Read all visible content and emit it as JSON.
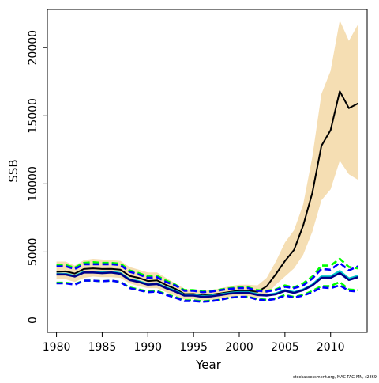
{
  "chart_data": {
    "type": "line",
    "xlabel": "Year",
    "ylabel": "SSB",
    "xlim": [
      1979,
      2014
    ],
    "ylim": [
      -900,
      22800
    ],
    "x_ticks": [
      1980,
      1985,
      1990,
      1995,
      2000,
      2005,
      2010
    ],
    "y_ticks": [
      0,
      5000,
      10000,
      15000,
      20000
    ],
    "x_tick_labels": [
      "1980",
      "1985",
      "1990",
      "1995",
      "2000",
      "2005",
      "2010"
    ],
    "y_tick_labels": [
      "0",
      "5000",
      "10000",
      "15000",
      "20000"
    ],
    "footer": "stockassessment.org, MAC-TAG-MN, r2869",
    "grid": false,
    "legend": "none",
    "x": [
      1980,
      1981,
      1982,
      1983,
      1984,
      1985,
      1986,
      1987,
      1988,
      1989,
      1990,
      1991,
      1992,
      1993,
      1994,
      1995,
      1996,
      1997,
      1998,
      1999,
      2000,
      2001,
      2002,
      2003,
      2004,
      2005,
      2006,
      2007,
      2008,
      2009,
      2010,
      2011,
      2012,
      2013
    ],
    "band": {
      "color": "#f5deb3",
      "lower": [
        3000,
        3000,
        2800,
        3100,
        3200,
        3150,
        3150,
        3100,
        2700,
        2500,
        2350,
        2350,
        2050,
        1800,
        1500,
        1550,
        1450,
        1500,
        1600,
        1700,
        1800,
        1750,
        1650,
        1900,
        2600,
        3200,
        3800,
        4800,
        6500,
        8800,
        9600,
        11700,
        10700,
        10300
      ],
      "upper": [
        4300,
        4300,
        4000,
        4400,
        4500,
        4450,
        4400,
        4350,
        3900,
        3700,
        3500,
        3500,
        3100,
        2700,
        2300,
        2200,
        2150,
        2200,
        2350,
        2500,
        2600,
        2600,
        2550,
        3100,
        4300,
        5700,
        6600,
        8500,
        12000,
        16600,
        18300,
        22000,
        20500,
        21700
      ]
    },
    "series": [
      {
        "color": "#000000",
        "dash": "none",
        "values": [
          3550,
          3580,
          3420,
          3750,
          3800,
          3750,
          3760,
          3700,
          3250,
          3100,
          2870,
          2920,
          2580,
          2300,
          1910,
          1920,
          1810,
          1870,
          1970,
          2070,
          2170,
          2160,
          2080,
          2480,
          3370,
          4340,
          5150,
          6950,
          9350,
          12800,
          13950,
          16800,
          15550,
          15900
        ]
      },
      {
        "color": "#00c8c8",
        "dash": "none",
        "values": [
          3400,
          3400,
          3250,
          3550,
          3550,
          3500,
          3550,
          3450,
          3000,
          2850,
          2650,
          2700,
          2400,
          2150,
          1850,
          1850,
          1750,
          1800,
          1900,
          2000,
          2050,
          2050,
          1900,
          1850,
          1950,
          2200,
          2050,
          2250,
          2600,
          3200,
          3200,
          3600,
          3050,
          3250
        ]
      },
      {
        "color": "#00ff00",
        "dash": "8,4",
        "values": [
          4050,
          4050,
          3850,
          4200,
          4250,
          4200,
          4200,
          4150,
          3650,
          3450,
          3200,
          3250,
          2900,
          2600,
          2200,
          2200,
          2100,
          2150,
          2250,
          2350,
          2400,
          2400,
          2200,
          2150,
          2250,
          2550,
          2400,
          2700,
          3200,
          4000,
          4000,
          4500,
          3900,
          3800
        ]
      },
      {
        "color": "#00ff00",
        "dash": "8,4",
        "values": [
          2750,
          2750,
          2650,
          2900,
          2900,
          2850,
          2900,
          2800,
          2400,
          2250,
          2100,
          2150,
          1900,
          1700,
          1450,
          1450,
          1380,
          1430,
          1500,
          1650,
          1700,
          1700,
          1550,
          1500,
          1600,
          1850,
          1700,
          1850,
          2150,
          2500,
          2500,
          2800,
          2250,
          2200
        ]
      },
      {
        "color": "#0000ff",
        "dash": "8,4",
        "values": [
          3950,
          3950,
          3750,
          4100,
          4100,
          4100,
          4100,
          4050,
          3550,
          3350,
          3100,
          3150,
          2800,
          2550,
          2150,
          2150,
          2050,
          2100,
          2200,
          2300,
          2350,
          2350,
          2150,
          2100,
          2200,
          2450,
          2350,
          2550,
          3050,
          3750,
          3700,
          4200,
          3650,
          3950
        ]
      },
      {
        "color": "#0000ff",
        "dash": "8,4",
        "values": [
          2700,
          2700,
          2600,
          2900,
          2900,
          2850,
          2900,
          2800,
          2350,
          2200,
          2050,
          2100,
          1850,
          1650,
          1400,
          1400,
          1350,
          1400,
          1500,
          1650,
          1700,
          1700,
          1500,
          1450,
          1550,
          1800,
          1650,
          1800,
          2050,
          2400,
          2350,
          2550,
          2150,
          2100
        ]
      },
      {
        "color": "#00008b",
        "dash": "none",
        "values": [
          3350,
          3350,
          3200,
          3500,
          3500,
          3450,
          3500,
          3400,
          2950,
          2800,
          2600,
          2650,
          2350,
          2100,
          1800,
          1800,
          1700,
          1750,
          1850,
          1950,
          2000,
          2000,
          1850,
          1800,
          1900,
          2150,
          2000,
          2200,
          2550,
          3100,
          3100,
          3450,
          2950,
          3150
        ]
      }
    ]
  }
}
